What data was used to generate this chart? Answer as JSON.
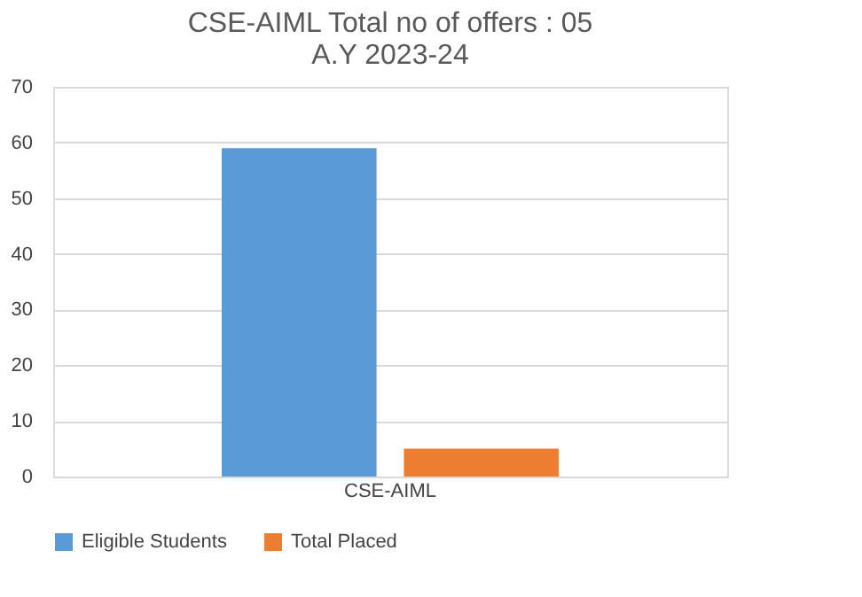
{
  "chart_data": {
    "type": "bar",
    "title": [
      "CSE-AIML Total no of offers : 05",
      "A.Y 2023-24"
    ],
    "categories": [
      "CSE-AIML"
    ],
    "series": [
      {
        "name": "Eligible Students",
        "color": "#5b9bd5",
        "values": [
          59
        ]
      },
      {
        "name": "Total Placed",
        "color": "#ed7d31",
        "values": [
          5
        ]
      }
    ],
    "ylim": [
      0,
      70
    ],
    "yticks": [
      0,
      10,
      20,
      30,
      40,
      50,
      60,
      70
    ],
    "grid": "y",
    "legend": "bottom"
  }
}
